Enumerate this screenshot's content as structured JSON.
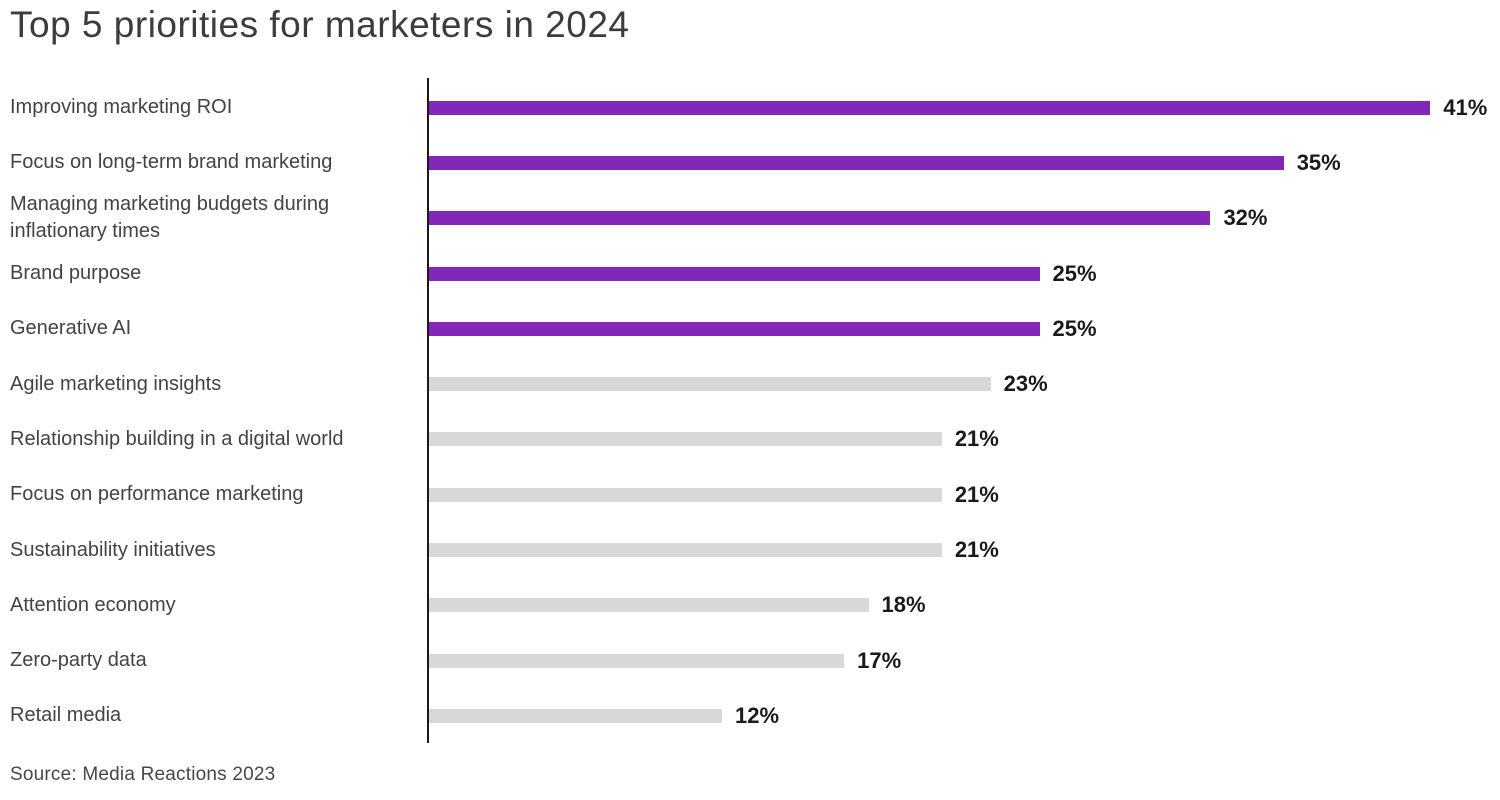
{
  "title": "Top 5 priorities for marketers in 2024",
  "source": "Source: Media Reactions 2023",
  "colors": {
    "highlight_bar": "#8227b8",
    "muted_bar": "#d8d8d8",
    "axis": "#1a1a1a",
    "title_text": "#3c3c3c",
    "label_text": "#434343",
    "value_text": "#1a1a1a"
  },
  "chart_data": {
    "type": "bar",
    "orientation": "horizontal",
    "title": "Top 5 priorities for marketers in 2024",
    "categories": [
      "Improving marketing ROI",
      "Focus on long-term brand marketing",
      "Managing marketing budgets during inflationary times",
      "Brand purpose",
      "Generative AI",
      "Agile marketing insights",
      "Relationship building in a digital world",
      "Focus on performance marketing",
      "Sustainability initiatives",
      "Attention economy",
      "Zero-party data",
      "Retail media"
    ],
    "values": [
      41,
      35,
      32,
      25,
      25,
      23,
      21,
      21,
      21,
      18,
      17,
      12
    ],
    "value_labels": [
      "41%",
      "35%",
      "32%",
      "25%",
      "25%",
      "23%",
      "21%",
      "21%",
      "21%",
      "18%",
      "17%",
      "12%"
    ],
    "highlighted": [
      true,
      true,
      true,
      true,
      true,
      false,
      false,
      false,
      false,
      false,
      false,
      false
    ],
    "xlim": [
      0,
      44
    ],
    "unit": "%",
    "grid": false,
    "legend": "none",
    "source": "Source: Media Reactions 2023"
  }
}
